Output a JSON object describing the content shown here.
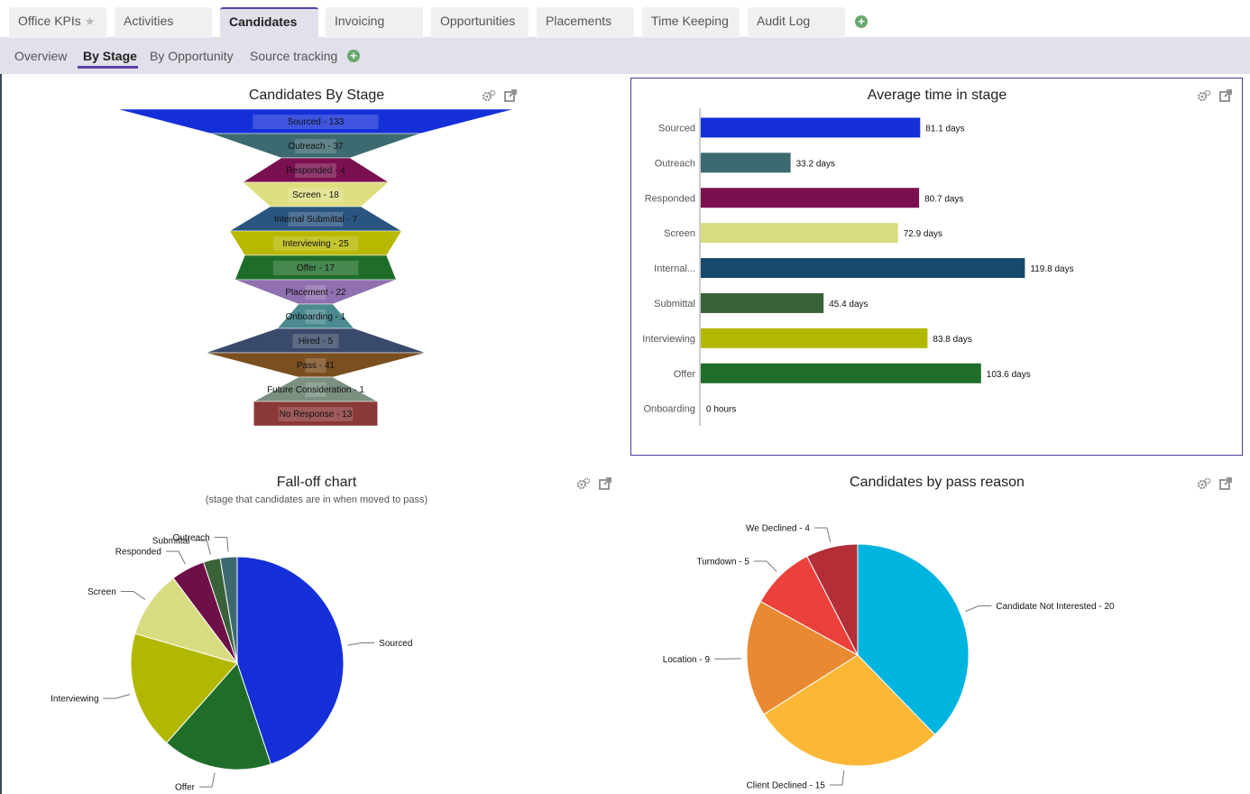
{
  "tabs": [
    {
      "label": "Office KPIs",
      "star": "★",
      "active": false
    },
    {
      "label": "Activities",
      "active": false
    },
    {
      "label": "Candidates",
      "active": true
    },
    {
      "label": "Invoicing",
      "active": false
    },
    {
      "label": "Opportunities",
      "active": false
    },
    {
      "label": "Placements",
      "active": false
    },
    {
      "label": "Time Keeping",
      "active": false
    },
    {
      "label": "Audit Log",
      "active": false
    }
  ],
  "subtabs": [
    {
      "label": "Overview",
      "active": false
    },
    {
      "label": "By Stage",
      "active": true
    },
    {
      "label": "By Opportunity",
      "active": false
    },
    {
      "label": "Source tracking",
      "active": false
    }
  ],
  "icons": {
    "add": "plus-circle-icon",
    "settings": "gear-icon",
    "popout": "popout-icon",
    "favorite": "star-icon"
  },
  "colors": {
    "accent": "#5b3fa8",
    "add": "#69a86e",
    "subbar": "#e2e0ea"
  },
  "chart_data": [
    {
      "type": "funnel",
      "title": "Candidates By Stage",
      "stages": [
        {
          "label": "Sourced - 133",
          "value": 133,
          "color": "#1530d8"
        },
        {
          "label": "Outreach - 37",
          "value": 37,
          "color": "#3d6a70"
        },
        {
          "label": "Responded - 4",
          "value": 4,
          "color": "#7a1050"
        },
        {
          "label": "Screen - 18",
          "value": 18,
          "color": "#dede80"
        },
        {
          "label": "Internal Submittal - 7",
          "value": 7,
          "color": "#2a5580"
        },
        {
          "label": "Interviewing - 25",
          "value": 25,
          "color": "#b8b800"
        },
        {
          "label": "Offer - 17",
          "value": 17,
          "color": "#1e6e2a"
        },
        {
          "label": "Placement - 22",
          "value": 22,
          "color": "#9070b0"
        },
        {
          "label": "Onboarding - 1",
          "value": 1,
          "color": "#4a8a90"
        },
        {
          "label": "Hired - 5",
          "value": 5,
          "color": "#3a4a6a"
        },
        {
          "label": "Pass - 41",
          "value": 41,
          "color": "#7a5020"
        },
        {
          "label": "Future Consideration - 1",
          "value": 1,
          "color": "#7a9080"
        },
        {
          "label": "No Response - 13",
          "value": 13,
          "color": "#8a3838"
        }
      ]
    },
    {
      "type": "bar",
      "orientation": "horizontal",
      "title": "Average time in stage",
      "categories": [
        "Sourced",
        "Outreach",
        "Responded",
        "Screen",
        "Internal...",
        "Submittal",
        "Interviewing",
        "Offer",
        "Onboarding"
      ],
      "values": [
        81.1,
        33.2,
        80.7,
        72.9,
        119.8,
        45.4,
        83.8,
        103.6,
        0
      ],
      "value_labels": [
        "81.1 days",
        "33.2 days",
        "80.7 days",
        "72.9 days",
        "119.8 days",
        "45.4 days",
        "83.8 days",
        "103.6 days",
        "0 hours"
      ],
      "colors": [
        "#1530d8",
        "#3d6a70",
        "#7a1050",
        "#d8dc80",
        "#17486e",
        "#3a6238",
        "#b2b800",
        "#1e6e2a",
        "#999999"
      ],
      "xlim": [
        0,
        150
      ]
    },
    {
      "type": "pie",
      "title": "Fall-off chart",
      "subtitle": "(stage that candidates are in when moved to pass)",
      "slices": [
        {
          "label": "Sourced",
          "value": 17.5,
          "color": "#1530d8"
        },
        {
          "label": "Offer",
          "value": 6.5,
          "color": "#1e6e2a"
        },
        {
          "label": "Interviewing",
          "value": 7,
          "color": "#b2b800"
        },
        {
          "label": "Screen",
          "value": 4,
          "color": "#d8dc80"
        },
        {
          "label": "Responded",
          "value": 2,
          "color": "#6e1048"
        },
        {
          "label": "Submittal",
          "value": 1,
          "color": "#3a6238"
        },
        {
          "label": "Outreach",
          "value": 1,
          "color": "#3d6a70"
        }
      ]
    },
    {
      "type": "pie",
      "title": "Candidates by pass reason",
      "slices": [
        {
          "label": "Candidate Not Interested - 20",
          "value": 20,
          "color": "#00b4e0"
        },
        {
          "label": "Client Declined - 15",
          "value": 15,
          "color": "#fbb735"
        },
        {
          "label": "Location - 9",
          "value": 9,
          "color": "#e98931"
        },
        {
          "label": "Turndown - 5",
          "value": 5,
          "color": "#eb403b"
        },
        {
          "label": "We Declined - 4",
          "value": 4,
          "color": "#b32e37"
        }
      ]
    }
  ]
}
